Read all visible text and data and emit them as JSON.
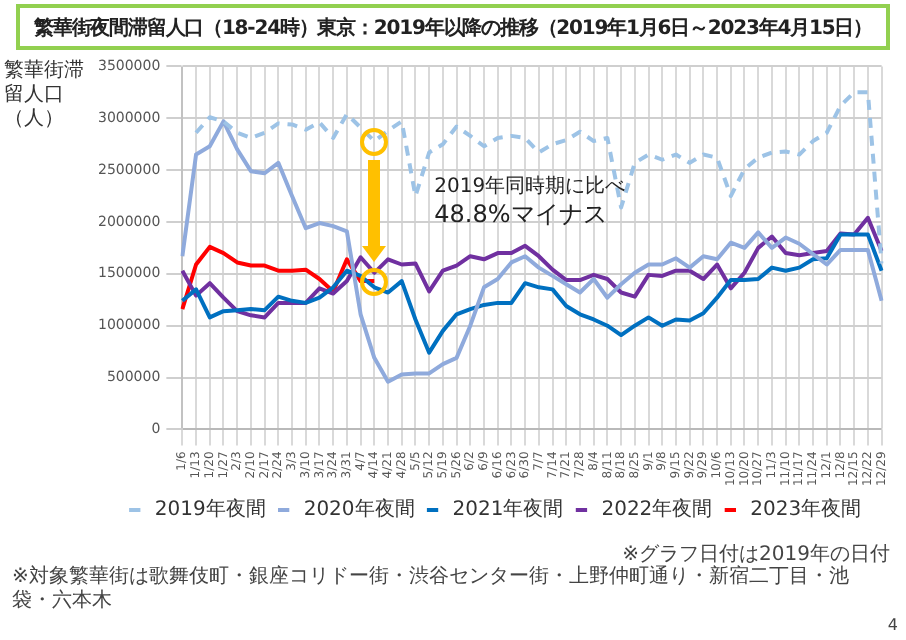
{
  "chart_data": {
    "type": "line",
    "title": "繁華街夜間滞留人口（18-24時）東京：2019年以降の推移（2019年1月6日～2023年4月15日）",
    "ylabel": "繁華街滞留人口（人）",
    "categories": [
      "1/6",
      "1/13",
      "1/20",
      "1/27",
      "2/3",
      "2/10",
      "2/17",
      "2/24",
      "3/3",
      "3/10",
      "3/17",
      "3/24",
      "3/31",
      "4/7",
      "4/14",
      "4/21",
      "4/28",
      "5/5",
      "5/12",
      "5/19",
      "5/26",
      "6/2",
      "6/9",
      "6/16",
      "6/23",
      "6/30",
      "7/7",
      "7/14",
      "7/21",
      "7/28",
      "8/4",
      "8/11",
      "8/18",
      "8/25",
      "9/1",
      "9/8",
      "9/15",
      "9/22",
      "9/29",
      "10/6",
      "10/13",
      "10/20",
      "10/27",
      "11/3",
      "11/10",
      "11/17",
      "11/24",
      "12/1",
      "12/8",
      "12/15",
      "12/22",
      "12/29"
    ],
    "series": [
      {
        "name": "2019年夜間",
        "color": "#9dc3e6",
        "line_style": "dashed",
        "values": [
          null,
          2860000,
          3010000,
          2970000,
          2860000,
          2810000,
          2860000,
          2950000,
          2940000,
          2890000,
          2960000,
          2810000,
          3040000,
          2910000,
          2780000,
          2880000,
          2970000,
          2250000,
          2670000,
          2750000,
          2920000,
          2830000,
          2730000,
          2810000,
          2830000,
          2810000,
          2670000,
          2750000,
          2790000,
          2870000,
          2780000,
          2810000,
          2140000,
          2570000,
          2650000,
          2600000,
          2650000,
          2570000,
          2650000,
          2620000,
          2250000,
          2510000,
          2620000,
          2670000,
          2680000,
          2650000,
          2780000,
          2860000,
          3120000,
          3250000,
          3250000,
          1600000
        ]
      },
      {
        "name": "2020年夜間",
        "color": "#8faadc",
        "line_style": "solid",
        "values": [
          1670000,
          2650000,
          2730000,
          2970000,
          2700000,
          2490000,
          2470000,
          2570000,
          2250000,
          1940000,
          1990000,
          1960000,
          1910000,
          1110000,
          690000,
          460000,
          530000,
          540000,
          540000,
          630000,
          690000,
          1000000,
          1370000,
          1450000,
          1610000,
          1670000,
          1560000,
          1480000,
          1400000,
          1320000,
          1450000,
          1270000,
          1400000,
          1510000,
          1590000,
          1590000,
          1650000,
          1560000,
          1670000,
          1640000,
          1800000,
          1750000,
          1900000,
          1750000,
          1850000,
          1790000,
          1690000,
          1590000,
          1730000,
          1730000,
          1730000,
          1240000
        ]
      },
      {
        "name": "2021年夜間",
        "color": "#0070c0",
        "line_style": "solid",
        "values": [
          1240000,
          1350000,
          1080000,
          1140000,
          1150000,
          1160000,
          1150000,
          1280000,
          1240000,
          1220000,
          1270000,
          1370000,
          1530000,
          1480000,
          1370000,
          1320000,
          1430000,
          1060000,
          740000,
          950000,
          1110000,
          1160000,
          1200000,
          1220000,
          1220000,
          1410000,
          1370000,
          1350000,
          1190000,
          1110000,
          1060000,
          1000000,
          910000,
          1000000,
          1080000,
          1000000,
          1060000,
          1050000,
          1120000,
          1270000,
          1440000,
          1440000,
          1450000,
          1560000,
          1530000,
          1560000,
          1640000,
          1650000,
          1880000,
          1880000,
          1880000,
          1530000
        ]
      },
      {
        "name": "2022年夜間",
        "color": "#7030a0",
        "line_style": "solid",
        "values": [
          1530000,
          1290000,
          1410000,
          1270000,
          1140000,
          1100000,
          1080000,
          1220000,
          1220000,
          1220000,
          1360000,
          1310000,
          1430000,
          1660000,
          1510000,
          1640000,
          1590000,
          1600000,
          1330000,
          1530000,
          1580000,
          1670000,
          1640000,
          1700000,
          1700000,
          1770000,
          1670000,
          1540000,
          1440000,
          1440000,
          1490000,
          1450000,
          1320000,
          1280000,
          1490000,
          1480000,
          1530000,
          1530000,
          1450000,
          1590000,
          1360000,
          1510000,
          1750000,
          1860000,
          1700000,
          1680000,
          1700000,
          1720000,
          1890000,
          1880000,
          2040000,
          1720000
        ]
      },
      {
        "name": "2023年夜間",
        "color": "#ff0000",
        "line_style": "solid",
        "values": [
          1160000,
          1590000,
          1760000,
          1700000,
          1610000,
          1580000,
          1580000,
          1530000,
          1530000,
          1540000,
          1450000,
          1330000,
          1640000,
          1430000,
          1430000,
          null,
          null,
          null,
          null,
          null,
          null,
          null,
          null,
          null,
          null,
          null,
          null,
          null,
          null,
          null,
          null,
          null,
          null,
          null,
          null,
          null,
          null,
          null,
          null,
          null,
          null,
          null,
          null,
          null,
          null,
          null,
          null,
          null,
          null,
          null,
          null,
          null
        ]
      }
    ],
    "ylim": [
      0,
      3500000
    ],
    "yticks": [
      0,
      500000,
      1000000,
      1500000,
      2000000,
      2500000,
      3000000,
      3500000
    ],
    "grid": true,
    "legend": "bottom",
    "marker": "none",
    "annotations": [
      "2019年同時期に比べ",
      "48.8%マイナス",
      "※グラフ日付は2019年の日付",
      "※対象繁華街は歌舞伎町・銀座コリドー街・渋谷センター街・上野仲町通り・新宿二丁目・池袋・六本木",
      "4"
    ]
  }
}
